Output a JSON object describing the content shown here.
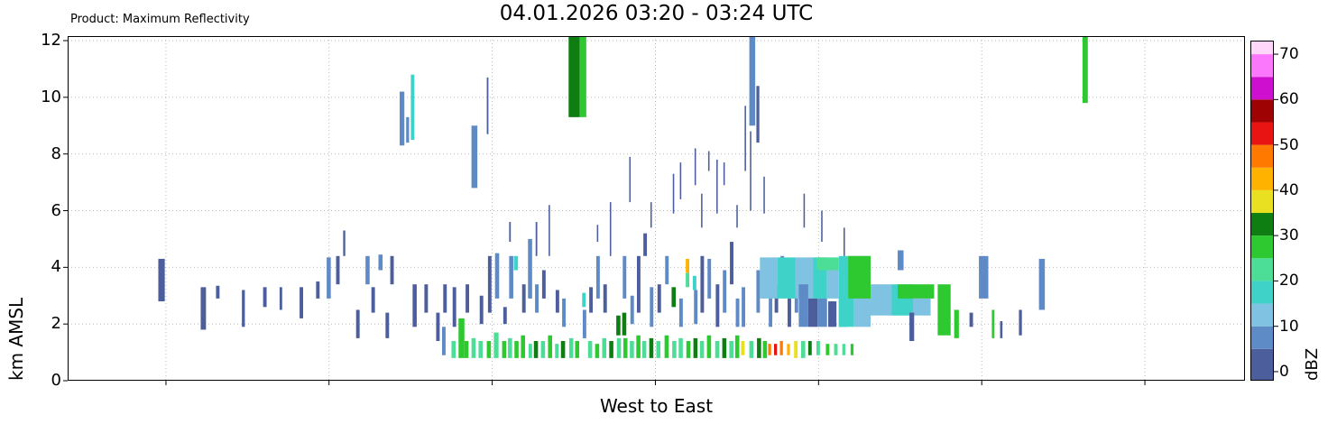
{
  "header": {
    "product_label": "Product: Maximum Reflectivity",
    "title": "04.01.2026 03:20 - 03:24 UTC"
  },
  "chart_data": {
    "type": "heatmap",
    "title": "04.01.2026 03:20 - 03:24 UTC",
    "xlabel": "West to East",
    "ylabel": "km AMSL",
    "ylim": [
      0,
      12.16
    ],
    "yticks": [
      0,
      2,
      4,
      6,
      8,
      10,
      12
    ],
    "xtick_positions_pct": [
      8.35,
      22.2,
      36.06,
      49.92,
      63.78,
      77.64,
      91.5
    ],
    "xtick_labels": [],
    "grid": true,
    "colorbar": {
      "label": "dBZ",
      "ticks": [
        0,
        10,
        20,
        30,
        40,
        50,
        60,
        70
      ],
      "range": [
        -2,
        73
      ],
      "bin_size": 5,
      "bin_edges": [
        -2,
        5,
        10,
        15,
        20,
        25,
        30,
        35,
        40,
        45,
        50,
        55,
        60,
        65,
        70,
        73
      ],
      "colors": [
        "#4c5f9c",
        "#5e8ac6",
        "#7fc2e2",
        "#3fd2c8",
        "#4cdd96",
        "#2ec930",
        "#0e7d12",
        "#e8e020",
        "#ffb300",
        "#ff7800",
        "#e81414",
        "#9e0202",
        "#cf0fcf",
        "#fb77fb",
        "#ffd7fb"
      ]
    },
    "bars": [
      [
        7.7,
        0.55,
        2.8,
        4.3,
        4
      ],
      [
        11.3,
        0.45,
        1.8,
        3.3,
        3
      ],
      [
        12.6,
        0.3,
        2.9,
        3.35,
        3
      ],
      [
        14.8,
        0.25,
        1.9,
        3.2,
        3
      ],
      [
        16.6,
        0.3,
        2.6,
        3.3,
        3
      ],
      [
        18.0,
        0.22,
        2.5,
        3.3,
        3
      ],
      [
        19.7,
        0.3,
        2.2,
        3.3,
        3
      ],
      [
        21.1,
        0.3,
        2.9,
        3.5,
        3
      ],
      [
        22.0,
        0.35,
        2.9,
        4.35,
        6
      ],
      [
        22.8,
        0.3,
        3.4,
        4.4,
        3
      ],
      [
        23.4,
        0.18,
        4.4,
        5.3,
        3
      ],
      [
        24.5,
        0.3,
        1.5,
        2.5,
        3
      ],
      [
        25.3,
        0.35,
        3.4,
        4.4,
        6
      ],
      [
        25.8,
        0.3,
        2.4,
        3.3,
        3
      ],
      [
        26.4,
        0.35,
        3.9,
        4.45,
        6
      ],
      [
        27.0,
        0.3,
        1.5,
        2.4,
        3
      ],
      [
        27.4,
        0.3,
        3.4,
        4.4,
        3
      ],
      [
        28.2,
        0.4,
        8.3,
        10.2,
        6
      ],
      [
        28.75,
        0.25,
        8.4,
        9.3,
        6
      ],
      [
        29.15,
        0.3,
        8.5,
        10.8,
        16
      ],
      [
        29.3,
        0.35,
        1.9,
        3.4,
        3
      ],
      [
        30.3,
        0.3,
        2.4,
        3.4,
        3
      ],
      [
        31.3,
        0.3,
        1.4,
        2.4,
        3
      ],
      [
        31.8,
        0.3,
        0.9,
        1.9,
        7
      ],
      [
        31.9,
        0.3,
        2.4,
        3.4,
        3
      ],
      [
        32.6,
        0.35,
        0.8,
        1.4,
        22
      ],
      [
        32.7,
        0.3,
        1.9,
        3.3,
        3
      ],
      [
        33.2,
        0.5,
        0.8,
        2.2,
        26
      ],
      [
        33.7,
        0.35,
        0.8,
        1.4,
        28
      ],
      [
        33.8,
        0.3,
        2.4,
        3.4,
        3
      ],
      [
        34.3,
        0.5,
        6.8,
        9.0,
        6
      ],
      [
        34.3,
        0.35,
        0.8,
        1.5,
        24
      ],
      [
        34.9,
        0.35,
        0.8,
        1.4,
        21
      ],
      [
        35.0,
        0.3,
        2.0,
        3.0,
        3
      ],
      [
        35.6,
        0.14,
        8.7,
        10.7,
        2
      ],
      [
        35.6,
        0.35,
        0.8,
        1.4,
        26
      ],
      [
        35.7,
        0.3,
        2.4,
        4.4,
        3
      ],
      [
        36.2,
        0.4,
        0.8,
        1.7,
        24
      ],
      [
        36.3,
        0.35,
        2.9,
        4.5,
        6
      ],
      [
        36.9,
        0.35,
        0.8,
        1.4,
        28
      ],
      [
        37.0,
        0.3,
        2.0,
        2.6,
        3
      ],
      [
        37.4,
        0.35,
        0.8,
        1.5,
        22
      ],
      [
        37.5,
        0.35,
        2.9,
        4.4,
        6
      ],
      [
        37.5,
        0.14,
        4.9,
        5.6,
        2
      ],
      [
        37.9,
        0.35,
        3.9,
        4.4,
        16
      ],
      [
        37.95,
        0.35,
        0.8,
        1.4,
        26
      ],
      [
        38.5,
        0.35,
        0.8,
        1.6,
        28
      ],
      [
        38.6,
        0.3,
        2.4,
        3.4,
        3
      ],
      [
        39.1,
        0.35,
        2.9,
        5.0,
        6
      ],
      [
        39.15,
        0.3,
        0.8,
        1.3,
        22
      ],
      [
        39.6,
        0.35,
        0.8,
        1.4,
        31
      ],
      [
        39.7,
        0.3,
        2.4,
        3.4,
        6
      ],
      [
        39.75,
        0.14,
        4.4,
        5.6,
        2
      ],
      [
        40.2,
        0.35,
        0.8,
        1.4,
        24
      ],
      [
        40.3,
        0.3,
        2.9,
        3.9,
        3
      ],
      [
        40.8,
        0.35,
        0.8,
        1.6,
        28
      ],
      [
        40.85,
        0.12,
        4.4,
        6.2,
        2
      ],
      [
        41.4,
        0.3,
        0.8,
        1.3,
        22
      ],
      [
        41.45,
        0.3,
        2.4,
        3.2,
        3
      ],
      [
        41.9,
        0.35,
        0.8,
        1.4,
        31
      ],
      [
        42.0,
        0.3,
        1.9,
        2.9,
        6
      ],
      [
        42.55,
        0.95,
        9.3,
        12.16,
        32
      ],
      [
        43.5,
        0.55,
        9.3,
        12.16,
        28
      ],
      [
        42.6,
        0.35,
        0.8,
        1.5,
        24
      ],
      [
        43.1,
        0.35,
        0.8,
        1.4,
        28
      ],
      [
        43.7,
        0.3,
        2.6,
        3.1,
        16
      ],
      [
        43.75,
        0.3,
        1.5,
        2.5,
        6
      ],
      [
        44.2,
        0.35,
        0.8,
        1.4,
        22
      ],
      [
        44.3,
        0.3,
        2.4,
        3.3,
        3
      ],
      [
        44.8,
        0.35,
        0.8,
        1.3,
        28
      ],
      [
        44.9,
        0.3,
        2.9,
        4.4,
        6
      ],
      [
        44.95,
        0.12,
        4.9,
        5.5,
        2
      ],
      [
        45.4,
        0.35,
        0.8,
        1.5,
        24
      ],
      [
        45.5,
        0.3,
        2.4,
        3.4,
        3
      ],
      [
        46.0,
        0.35,
        0.8,
        1.4,
        31
      ],
      [
        46.05,
        0.12,
        4.4,
        6.3,
        2
      ],
      [
        46.6,
        0.35,
        1.6,
        2.3,
        31
      ],
      [
        46.65,
        0.35,
        0.8,
        1.5,
        24
      ],
      [
        47.1,
        0.35,
        1.6,
        2.4,
        33
      ],
      [
        47.15,
        0.3,
        2.9,
        4.4,
        6
      ],
      [
        47.2,
        0.35,
        0.8,
        1.5,
        28
      ],
      [
        47.7,
        0.12,
        6.3,
        7.9,
        2
      ],
      [
        47.75,
        0.35,
        0.8,
        1.4,
        24
      ],
      [
        47.8,
        0.3,
        2.0,
        3.0,
        6
      ],
      [
        48.3,
        0.35,
        0.8,
        1.6,
        28
      ],
      [
        48.35,
        0.3,
        2.4,
        4.4,
        3
      ],
      [
        48.8,
        0.35,
        0.8,
        1.4,
        22
      ],
      [
        48.9,
        0.3,
        4.4,
        5.2,
        3
      ],
      [
        49.4,
        0.35,
        0.8,
        1.5,
        31
      ],
      [
        49.45,
        0.3,
        1.9,
        3.3,
        6
      ],
      [
        49.5,
        0.12,
        5.4,
        6.3,
        2
      ],
      [
        50.0,
        0.35,
        0.8,
        1.4,
        24
      ],
      [
        50.1,
        0.3,
        2.4,
        3.4,
        3
      ],
      [
        50.7,
        0.35,
        0.8,
        1.6,
        28
      ],
      [
        50.75,
        0.3,
        3.4,
        4.4,
        6
      ],
      [
        51.3,
        0.35,
        2.6,
        3.3,
        33
      ],
      [
        51.35,
        0.35,
        0.8,
        1.4,
        24
      ],
      [
        51.4,
        0.12,
        5.9,
        7.3,
        2
      ],
      [
        51.9,
        0.35,
        0.8,
        1.5,
        22
      ],
      [
        51.95,
        0.3,
        1.9,
        2.9,
        6
      ],
      [
        52.0,
        0.12,
        6.4,
        7.7,
        2
      ],
      [
        52.5,
        0.3,
        3.8,
        4.3,
        41
      ],
      [
        52.5,
        0.3,
        3.3,
        3.8,
        24
      ],
      [
        52.55,
        0.35,
        0.8,
        1.4,
        28
      ],
      [
        53.1,
        0.3,
        3.2,
        3.7,
        16
      ],
      [
        53.15,
        0.35,
        0.8,
        1.5,
        31
      ],
      [
        53.2,
        0.3,
        2.0,
        3.2,
        6
      ],
      [
        53.25,
        0.12,
        6.9,
        8.2,
        2
      ],
      [
        53.7,
        0.35,
        0.8,
        1.4,
        24
      ],
      [
        53.75,
        0.3,
        2.4,
        4.4,
        3
      ],
      [
        53.8,
        0.12,
        5.4,
        6.6,
        2
      ],
      [
        54.3,
        0.35,
        0.8,
        1.6,
        28
      ],
      [
        54.35,
        0.3,
        2.9,
        4.3,
        6
      ],
      [
        54.4,
        0.12,
        7.4,
        8.1,
        2
      ],
      [
        55.0,
        0.35,
        0.8,
        1.4,
        22
      ],
      [
        55.05,
        0.3,
        1.9,
        3.4,
        3
      ],
      [
        55.1,
        0.12,
        5.9,
        7.8,
        2
      ],
      [
        55.6,
        0.35,
        0.8,
        1.5,
        31
      ],
      [
        55.65,
        0.3,
        2.4,
        3.9,
        6
      ],
      [
        55.7,
        0.12,
        6.9,
        7.7,
        2
      ],
      [
        56.2,
        0.35,
        0.8,
        1.4,
        24
      ],
      [
        56.25,
        0.3,
        3.4,
        4.9,
        3
      ],
      [
        56.7,
        0.35,
        0.8,
        1.6,
        28
      ],
      [
        56.75,
        0.3,
        1.9,
        2.9,
        6
      ],
      [
        56.8,
        0.12,
        5.4,
        6.2,
        2
      ],
      [
        57.2,
        0.3,
        0.9,
        1.4,
        38
      ],
      [
        57.25,
        0.3,
        1.9,
        3.3,
        6
      ],
      [
        57.5,
        0.12,
        7.4,
        9.7,
        3
      ],
      [
        57.9,
        0.5,
        9.0,
        12.16,
        6
      ],
      [
        57.95,
        0.12,
        6.0,
        8.8,
        3
      ],
      [
        57.9,
        0.35,
        0.8,
        1.4,
        24
      ],
      [
        58.5,
        0.25,
        8.4,
        10.4,
        4
      ],
      [
        58.5,
        0.3,
        2.4,
        3.9,
        6
      ],
      [
        58.55,
        0.35,
        0.8,
        1.5,
        31
      ],
      [
        59.0,
        0.3,
        2.9,
        3.3,
        16
      ],
      [
        59.05,
        0.35,
        0.8,
        1.4,
        28
      ],
      [
        59.1,
        0.12,
        5.9,
        7.2,
        2
      ],
      [
        59.5,
        0.25,
        0.9,
        1.3,
        46
      ],
      [
        59.55,
        0.3,
        1.9,
        3.3,
        6
      ],
      [
        60.0,
        0.25,
        0.9,
        1.3,
        51
      ],
      [
        60.05,
        0.3,
        2.4,
        3.4,
        3
      ],
      [
        60.5,
        0.25,
        0.9,
        1.4,
        46
      ],
      [
        60.55,
        0.3,
        3.4,
        4.4,
        6
      ],
      [
        61.1,
        0.25,
        0.9,
        1.3,
        41
      ],
      [
        61.15,
        0.3,
        1.9,
        2.9,
        3
      ],
      [
        61.7,
        0.3,
        0.8,
        1.4,
        36
      ],
      [
        61.75,
        0.3,
        2.4,
        3.4,
        6
      ],
      [
        58.8,
        1.5,
        2.9,
        4.35,
        13
      ],
      [
        60.3,
        1.5,
        2.9,
        4.35,
        16
      ],
      [
        61.8,
        1.5,
        2.9,
        4.35,
        13
      ],
      [
        63.3,
        1.2,
        2.9,
        4.35,
        16
      ],
      [
        63.6,
        1.9,
        3.9,
        4.35,
        24
      ],
      [
        64.5,
        1.0,
        2.9,
        3.9,
        13
      ],
      [
        62.1,
        0.8,
        1.9,
        3.4,
        6
      ],
      [
        62.9,
        0.8,
        1.9,
        2.9,
        4
      ],
      [
        63.7,
        0.8,
        1.9,
        2.9,
        6
      ],
      [
        64.6,
        0.7,
        1.9,
        2.8,
        4
      ],
      [
        65.5,
        0.7,
        1.9,
        2.9,
        6
      ],
      [
        65.5,
        1.3,
        1.9,
        4.4,
        17
      ],
      [
        66.8,
        1.4,
        1.9,
        4.4,
        14
      ],
      [
        66.3,
        1.9,
        2.9,
        4.4,
        25
      ],
      [
        68.2,
        1.8,
        2.3,
        3.4,
        14
      ],
      [
        70.0,
        1.8,
        2.3,
        3.4,
        16
      ],
      [
        70.5,
        3.1,
        2.9,
        3.4,
        25
      ],
      [
        71.8,
        1.5,
        2.3,
        2.9,
        14
      ],
      [
        70.5,
        0.5,
        3.9,
        4.6,
        6
      ],
      [
        71.5,
        0.4,
        1.4,
        2.4,
        3
      ],
      [
        65.9,
        0.12,
        4.4,
        5.4,
        2
      ],
      [
        62.5,
        0.12,
        5.4,
        6.6,
        2
      ],
      [
        64.0,
        0.12,
        4.9,
        6.0,
        2
      ],
      [
        62.3,
        0.35,
        0.8,
        1.4,
        24
      ],
      [
        62.9,
        0.3,
        0.9,
        1.4,
        31
      ],
      [
        63.6,
        0.3,
        0.9,
        1.4,
        22
      ],
      [
        64.4,
        0.3,
        0.9,
        1.3,
        28
      ],
      [
        65.1,
        0.3,
        0.9,
        1.3,
        21
      ],
      [
        65.8,
        0.25,
        0.9,
        1.3,
        24
      ],
      [
        66.5,
        0.25,
        0.9,
        1.3,
        26
      ],
      [
        73.9,
        1.1,
        1.6,
        3.4,
        25
      ],
      [
        75.3,
        0.4,
        1.5,
        2.5,
        28
      ],
      [
        76.6,
        0.3,
        1.9,
        2.4,
        3
      ],
      [
        77.4,
        0.8,
        2.9,
        4.4,
        5
      ],
      [
        78.5,
        0.22,
        1.5,
        2.5,
        25
      ],
      [
        79.2,
        0.2,
        1.5,
        2.1,
        3
      ],
      [
        80.8,
        0.25,
        1.6,
        2.5,
        3
      ],
      [
        82.5,
        0.5,
        2.5,
        4.3,
        5
      ],
      [
        86.2,
        0.45,
        9.8,
        12.16,
        25
      ]
    ]
  }
}
